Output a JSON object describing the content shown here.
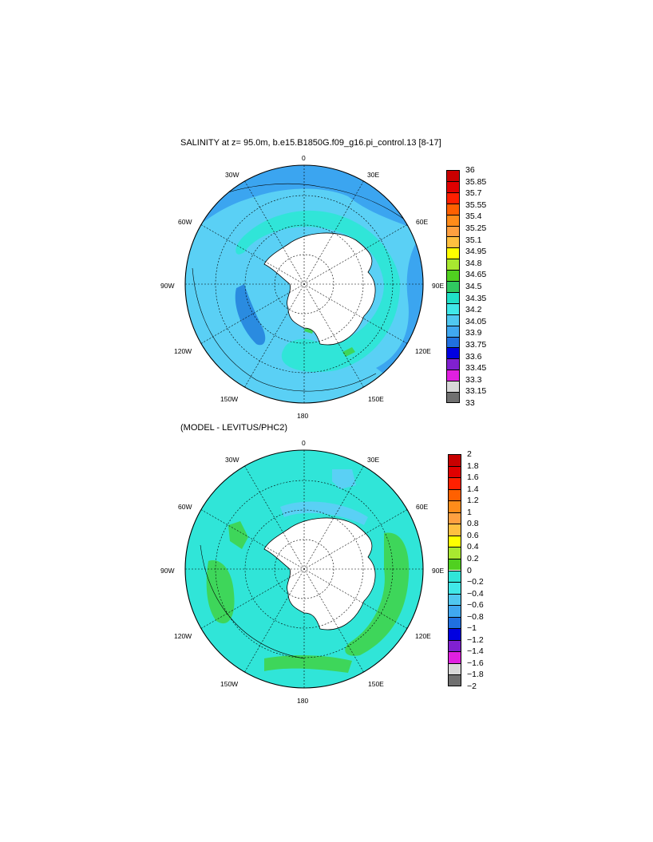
{
  "colors": {
    "ocean_deep": "#3ba5f0",
    "ocean_light": "#5ad0f5",
    "cyan": "#30e5d8",
    "green": "#3ed65a",
    "ice": "#ffffff"
  },
  "panels": [
    {
      "title": "SALINITY at z=  95.0m, b.e15.B1850G.f09_g16.pi_control.13 [8-17]",
      "lon_labels": {
        "n0": "0",
        "n30e": "30E",
        "n60e": "60E",
        "n90e": "90E",
        "n120e": "120E",
        "n150e": "150E",
        "n180": "180",
        "n150w": "150W",
        "n120w": "120W",
        "n90w": "90W",
        "n60w": "60W",
        "n30w": "30W"
      },
      "colorbar": {
        "ticks": [
          "36",
          "35.85",
          "35.7",
          "35.55",
          "35.4",
          "35.25",
          "35.1",
          "34.95",
          "34.8",
          "34.65",
          "34.5",
          "34.35",
          "34.2",
          "34.05",
          "33.9",
          "33.75",
          "33.6",
          "33.45",
          "33.3",
          "33.15",
          "33"
        ],
        "colors": [
          "#c80000",
          "#e00000",
          "#ff2000",
          "#ff6000",
          "#ff8c1a",
          "#ffa040",
          "#ffc040",
          "#ffff00",
          "#a8e830",
          "#50d020",
          "#30c860",
          "#20e0c8",
          "#40e8e8",
          "#50c8f0",
          "#40a8f0",
          "#2070e0",
          "#0000e0",
          "#8020d0",
          "#e020e0",
          "#d8d8d8",
          "#707070"
        ]
      }
    },
    {
      "title": "(MODEL - LEVITUS/PHC2)",
      "lon_labels": {
        "n0": "0",
        "n30e": "30E",
        "n60e": "60E",
        "n90e": "90E",
        "n120e": "120E",
        "n150e": "150E",
        "n180": "180",
        "n150w": "150W",
        "n120w": "120W",
        "n90w": "90W",
        "n60w": "60W",
        "n30w": "30W"
      },
      "colorbar": {
        "ticks": [
          "2",
          "1.8",
          "1.6",
          "1.4",
          "1.2",
          "1",
          "0.8",
          "0.6",
          "0.4",
          "0.2",
          "0",
          "−0.2",
          "−0.4",
          "−0.6",
          "−0.8",
          "−1",
          "−1.2",
          "−1.4",
          "−1.6",
          "−1.8",
          "−2"
        ],
        "colors": [
          "#c80000",
          "#e00000",
          "#ff2000",
          "#ff6000",
          "#ff8c1a",
          "#ffa040",
          "#ffc040",
          "#ffff00",
          "#a8e830",
          "#50d020",
          "#30e5d8",
          "#40e8e8",
          "#50c8f0",
          "#40a8f0",
          "#2070e0",
          "#0000e0",
          "#8020d0",
          "#e020e0",
          "#d8d8d8",
          "#707070"
        ]
      }
    }
  ]
}
